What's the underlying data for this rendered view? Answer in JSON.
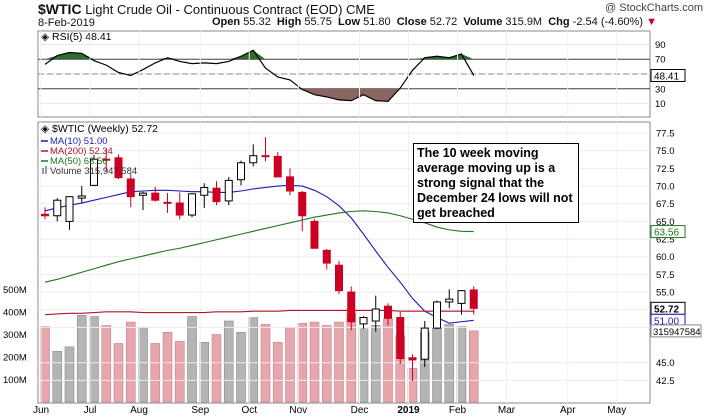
{
  "header": {
    "symbol": "$WTIC",
    "name": "Light Crude Oil - Continuous Contract (EOD)",
    "exchange": "CME",
    "copyright": "@ StockCharts.com",
    "date": "8-Feb-2019",
    "open_label": "Open",
    "open": "55.32",
    "high_label": "High",
    "high": "55.75",
    "low_label": "Low",
    "low": "51.80",
    "close_label": "Close",
    "close": "52.72",
    "volume_label": "Volume",
    "volume": "315.9M",
    "chg_label": "Chg",
    "chg": "-2.54 (-4.60%)"
  },
  "annotation": "The 10 week moving average moving up is a strong signal that the December 24 lows will not get breached",
  "colors": {
    "up": "#000000",
    "down": "#cc0022",
    "ma10": "#1c1cb4",
    "ma200": "#b4142a",
    "ma50": "#1e781e",
    "rsi_line": "#000000",
    "rsi_ob": "#2f6b2f",
    "rsi_os": "#8b6561",
    "vol_up": "#b4b4b4",
    "vol_down": "#e6a6ac"
  },
  "chart_data": [
    {
      "type": "line",
      "panel": "rsi",
      "legend": "RSI(5) 48.41",
      "ylim": [
        0,
        100
      ],
      "y_ticks": [
        "10",
        "30",
        "50",
        "70",
        "90"
      ],
      "levels": [
        30,
        70
      ],
      "last_value_label": "48.41",
      "values": [
        63,
        75,
        79,
        78,
        68,
        62,
        52,
        48,
        56,
        65,
        72,
        67,
        64,
        65,
        64,
        67,
        74,
        82,
        58,
        46,
        42,
        29,
        22,
        19,
        15,
        14,
        22,
        14,
        13,
        31,
        55,
        72,
        74,
        72,
        77,
        48
      ]
    },
    {
      "type": "candlestick",
      "panel": "price",
      "legend": "$WTIC (Weekly) 52.72",
      "ylim": [
        41,
        78.5
      ],
      "y_ticks": [
        "42.5",
        "45.0",
        "50.0",
        "52.5",
        "55.0",
        "57.5",
        "60.0",
        "62.5",
        "65.0",
        "67.5",
        "70.0",
        "72.5",
        "75.0",
        "77.5"
      ],
      "x_labels": [
        "Jun",
        "Jul",
        "Aug",
        "Sep",
        "Oct",
        "Nov",
        "Dec",
        "2019",
        "Feb",
        "Mar",
        "Apr",
        "May"
      ],
      "ohlc": [
        [
          66.0,
          67.0,
          65.3,
          65.8
        ],
        [
          65.8,
          68.3,
          65.0,
          68.0
        ],
        [
          65.0,
          68.5,
          63.8,
          68.5
        ],
        [
          68.3,
          70.0,
          67.6,
          68.6
        ],
        [
          70.1,
          74.4,
          70.0,
          73.8
        ],
        [
          73.8,
          75.3,
          72.0,
          73.7
        ],
        [
          74.0,
          74.5,
          71.0,
          71.2
        ],
        [
          71.0,
          71.7,
          67.0,
          68.5
        ],
        [
          68.7,
          69.2,
          66.6,
          69.0
        ],
        [
          69.0,
          69.9,
          67.8,
          68.0
        ],
        [
          67.7,
          69.0,
          66.2,
          67.6
        ],
        [
          67.6,
          69.1,
          65.3,
          65.9
        ],
        [
          65.9,
          69.0,
          65.6,
          68.9
        ],
        [
          68.7,
          70.4,
          66.9,
          69.8
        ],
        [
          69.7,
          70.7,
          67.3,
          67.8
        ],
        [
          67.9,
          71.3,
          67.3,
          70.8
        ],
        [
          70.9,
          73.6,
          70.1,
          73.3
        ],
        [
          73.3,
          75.9,
          72.8,
          74.3
        ],
        [
          74.3,
          76.9,
          73.5,
          74.2
        ],
        [
          74.2,
          74.8,
          71.6,
          71.3
        ],
        [
          71.3,
          72.5,
          68.7,
          69.3
        ],
        [
          69.1,
          69.3,
          63.6,
          65.8
        ],
        [
          65.0,
          65.3,
          61.2,
          61.2
        ],
        [
          60.9,
          61.1,
          58.2,
          59.1
        ],
        [
          58.8,
          59.4,
          54.7,
          55.2
        ],
        [
          55.0,
          55.8,
          49.6,
          50.8
        ],
        [
          50.5,
          51.6,
          49.8,
          51.4
        ],
        [
          50.9,
          54.5,
          49.4,
          52.6
        ],
        [
          53.0,
          53.4,
          50.3,
          51.3
        ],
        [
          51.4,
          52.2,
          44.8,
          45.6
        ],
        [
          45.7,
          46.2,
          42.4,
          45.4
        ],
        [
          45.5,
          50.9,
          44.4,
          49.9
        ],
        [
          49.9,
          53.8,
          49.8,
          53.6
        ],
        [
          53.6,
          55.4,
          52.7,
          54.0
        ],
        [
          53.4,
          55.3,
          51.8,
          55.2
        ],
        [
          55.3,
          55.8,
          51.8,
          52.7
        ]
      ],
      "series": [
        {
          "name": "MA(10)",
          "legend": "MA(10) 51.00",
          "last_label": "51.00",
          "values": [
            66.5,
            66.9,
            67.3,
            67.6,
            68.0,
            68.4,
            68.8,
            69.2,
            69.3,
            69.4,
            69.4,
            69.3,
            69.2,
            69.2,
            69.1,
            69.1,
            69.3,
            69.6,
            69.8,
            70.0,
            70.1,
            70.0,
            69.4,
            68.5,
            67.2,
            65.5,
            63.2,
            60.8,
            58.5,
            56.4,
            54.1,
            52.3,
            51.4,
            50.6,
            50.8,
            51.0
          ]
        },
        {
          "name": "MA(200)",
          "legend": "MA(200) 52.34",
          "last_label": "52.34",
          "values": [
            51.8,
            51.9,
            52.0,
            52.0,
            52.1,
            52.2,
            52.2,
            52.2,
            52.1,
            52.1,
            52.1,
            52.1,
            52.1,
            52.1,
            52.2,
            52.2,
            52.2,
            52.3,
            52.3,
            52.3,
            52.4,
            52.4,
            52.4,
            52.4,
            52.4,
            52.4,
            52.4,
            52.4,
            52.4,
            52.3,
            52.3,
            52.3,
            52.3,
            52.3,
            52.3,
            52.3
          ]
        },
        {
          "name": "MA(50)",
          "legend": "MA(50) 63.56",
          "last_label": "63.56",
          "values": [
            56.4,
            56.8,
            57.3,
            57.8,
            58.3,
            58.8,
            59.3,
            59.7,
            60.1,
            60.5,
            60.9,
            61.2,
            61.6,
            62.0,
            62.4,
            62.8,
            63.2,
            63.6,
            64.0,
            64.4,
            64.8,
            65.2,
            65.6,
            65.9,
            66.2,
            66.4,
            66.5,
            66.4,
            66.2,
            65.8,
            65.3,
            64.8,
            64.2,
            63.8,
            63.6,
            63.56
          ]
        }
      ]
    },
    {
      "type": "bar",
      "panel": "volume",
      "legend": "Volume 315,947,584",
      "last_value_label": "315947584",
      "y_ticks": [
        "100M",
        "200M",
        "300M",
        "400M",
        "500M"
      ],
      "ylim": [
        0,
        560
      ],
      "values": [
        335,
        225,
        245,
        385,
        380,
        340,
        260,
        355,
        330,
        260,
        310,
        270,
        380,
        265,
        300,
        360,
        310,
        375,
        345,
        265,
        330,
        350,
        355,
        340,
        355,
        395,
        325,
        340,
        370,
        295,
        150,
        310,
        330,
        345,
        335,
        316
      ],
      "down": [
        1,
        0,
        0,
        0,
        0,
        1,
        1,
        1,
        0,
        1,
        1,
        1,
        0,
        0,
        1,
        0,
        0,
        0,
        1,
        1,
        1,
        1,
        1,
        1,
        1,
        1,
        0,
        0,
        1,
        1,
        1,
        0,
        0,
        0,
        0,
        1
      ]
    }
  ]
}
